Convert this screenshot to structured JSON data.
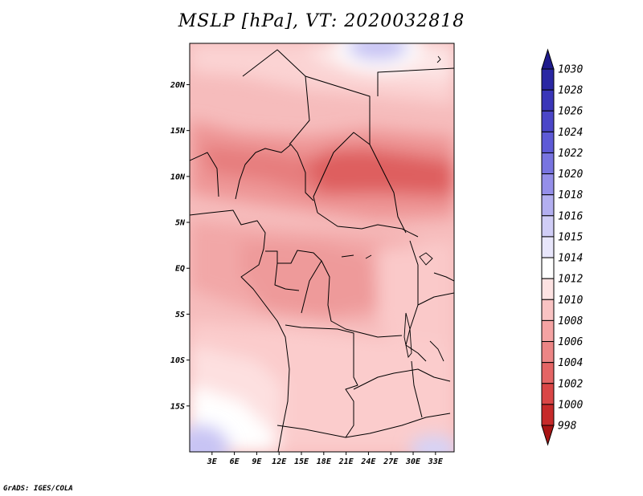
{
  "title": "MSLP [hPa], VT: 2020032818",
  "credit": "GrADS: IGES/COLA",
  "map": {
    "lon_range": [
      0,
      35.5
    ],
    "lat_range": [
      -20,
      24.5
    ],
    "x_ticks": [
      "3E",
      "6E",
      "9E",
      "12E",
      "15E",
      "18E",
      "21E",
      "24E",
      "27E",
      "30E",
      "33E"
    ],
    "x_tick_values": [
      3,
      6,
      9,
      12,
      15,
      18,
      21,
      24,
      27,
      30,
      33
    ],
    "y_ticks": [
      "20N",
      "15N",
      "10N",
      "5N",
      "EQ",
      "5S",
      "10S",
      "15S"
    ],
    "y_tick_values": [
      20,
      15,
      10,
      5,
      0,
      -5,
      -10,
      -15
    ]
  },
  "colorbar": {
    "labels": [
      "1030",
      "1028",
      "1026",
      "1024",
      "1022",
      "1020",
      "1018",
      "1016",
      "1015",
      "1014",
      "1012",
      "1010",
      "1008",
      "1006",
      "1004",
      "1002",
      "1000",
      "998"
    ],
    "colors": [
      "#1f1b8c",
      "#2a27a3",
      "#3a36b8",
      "#4b46c8",
      "#5e5ad6",
      "#7874e0",
      "#958fe9",
      "#b3aff0",
      "#d0cdf6",
      "#e8e6fb",
      "#ffffff",
      "#fde2e2",
      "#f9c3c3",
      "#f4a3a3",
      "#ec8585",
      "#e46565",
      "#d94646",
      "#c62a2a",
      "#a81414"
    ]
  }
}
